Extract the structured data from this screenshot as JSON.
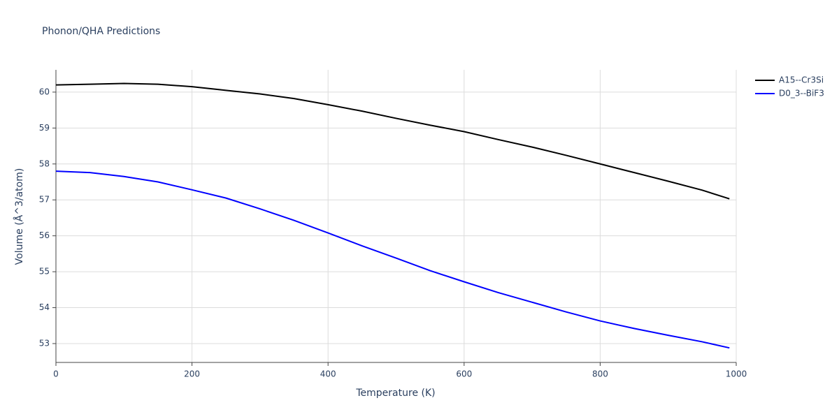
{
  "chart_data": {
    "type": "line",
    "title": "Phonon/QHA Predictions",
    "x_label": "Temperature (K)",
    "y_label": "Volume (Å^3/atom)",
    "xlim": [
      0,
      1000
    ],
    "xticks": [
      0,
      200,
      400,
      600,
      800,
      1000
    ],
    "ylim": [
      52.475,
      60.62
    ],
    "yticks": [
      53,
      54,
      55,
      56,
      57,
      58,
      59,
      60
    ],
    "grid": true,
    "legend": "top-right",
    "series": [
      {
        "name": "A15--Cr3Si",
        "color": "#000000",
        "x": [
          0,
          50,
          100,
          150,
          200,
          250,
          300,
          350,
          400,
          450,
          500,
          550,
          600,
          650,
          700,
          750,
          800,
          850,
          900,
          950,
          990
        ],
        "values": [
          60.2,
          60.22,
          60.24,
          60.22,
          60.15,
          60.05,
          59.95,
          59.82,
          59.65,
          59.47,
          59.27,
          59.08,
          58.9,
          58.68,
          58.47,
          58.24,
          58.0,
          57.76,
          57.52,
          57.27,
          57.03
        ]
      },
      {
        "name": "D0_3--BiF3",
        "color": "#0000ff",
        "x": [
          0,
          50,
          100,
          150,
          200,
          250,
          300,
          350,
          400,
          450,
          500,
          550,
          600,
          650,
          700,
          750,
          800,
          850,
          900,
          950,
          990
        ],
        "values": [
          57.8,
          57.76,
          57.65,
          57.5,
          57.28,
          57.05,
          56.75,
          56.43,
          56.08,
          55.72,
          55.38,
          55.03,
          54.72,
          54.42,
          54.15,
          53.88,
          53.63,
          53.42,
          53.23,
          53.05,
          52.88
        ]
      }
    ]
  }
}
